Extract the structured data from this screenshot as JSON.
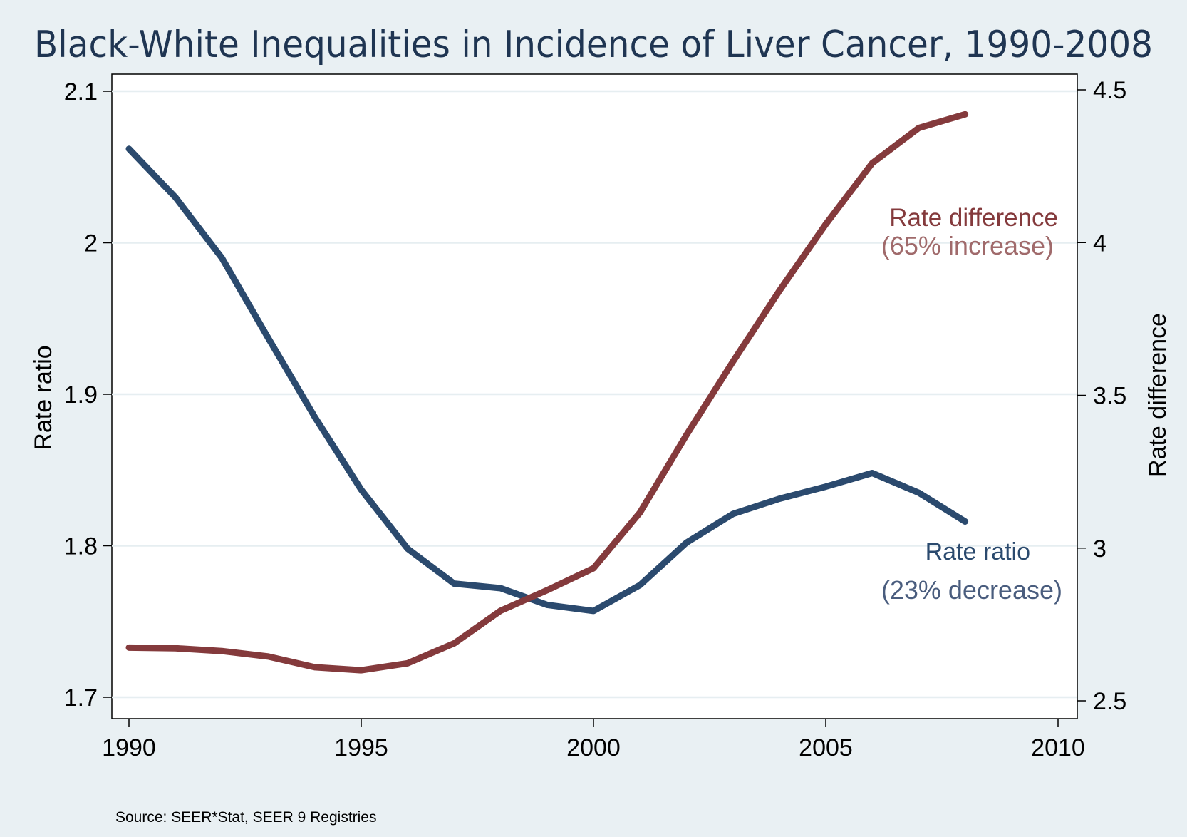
{
  "chart_data": {
    "type": "line",
    "title": "Black-White Inequalities in Incidence of Liver Cancer, 1990-2008",
    "source": "Source: SEER*Stat, SEER 9 Registries",
    "x": [
      1990,
      1991,
      1992,
      1993,
      1994,
      1995,
      1996,
      1997,
      1998,
      1999,
      2000,
      2001,
      2002,
      2003,
      2004,
      2005,
      2006,
      2007,
      2008
    ],
    "xlim": [
      1990,
      2010
    ],
    "xticks": [
      "1990",
      "1995",
      "2000",
      "2005",
      "2010"
    ],
    "y_left": {
      "label": "Rate ratio",
      "lim": [
        1.7,
        2.1
      ],
      "ticks": [
        "1.7",
        "1.8",
        "1.9",
        "2",
        "2.1"
      ]
    },
    "y_right": {
      "label": "Rate difference",
      "lim": [
        2.5,
        4.5
      ],
      "ticks": [
        "2.5",
        "3",
        "3.5",
        "4",
        "4.5"
      ]
    },
    "grid": true,
    "series": [
      {
        "name": "Rate ratio",
        "axis": "left",
        "color": "#2b4a6e",
        "values": [
          2.062,
          2.03,
          1.99,
          1.937,
          1.885,
          1.837,
          1.798,
          1.775,
          1.772,
          1.761,
          1.757,
          1.774,
          1.802,
          1.821,
          1.831,
          1.839,
          1.848,
          1.835,
          1.816
        ]
      },
      {
        "name": "Rate difference",
        "axis": "right",
        "color": "#843a3c",
        "values": [
          2.674,
          2.672,
          2.663,
          2.645,
          2.61,
          2.6,
          2.623,
          2.688,
          2.795,
          2.862,
          2.934,
          3.116,
          3.37,
          3.61,
          3.842,
          4.06,
          4.26,
          4.375,
          4.42
        ]
      }
    ],
    "annotations": [
      {
        "text": "Rate difference",
        "color": "#843a3c"
      },
      {
        "text": "(65% increase)",
        "color": "#a06a6b"
      },
      {
        "text": "Rate  ratio",
        "color": "#2b4a6e"
      },
      {
        "text": "(23% decrease)",
        "color": "#4a5d7e"
      }
    ]
  }
}
